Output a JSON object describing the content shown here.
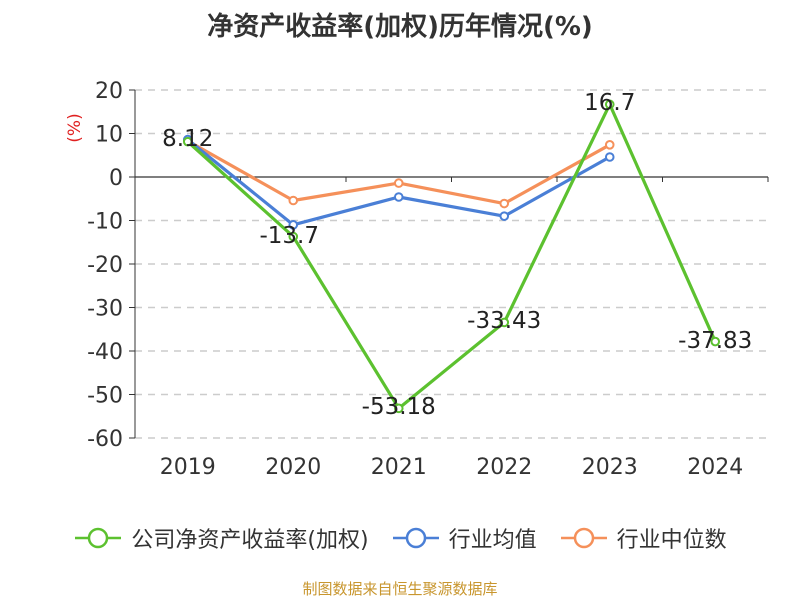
{
  "title": "净资产收益率(加权)历年情况(%)",
  "source": "制图数据来自恒生聚源数据库",
  "chart_data": {
    "type": "line",
    "categories": [
      "2019",
      "2020",
      "2021",
      "2022",
      "2023",
      "2024"
    ],
    "ylabel": "(%)",
    "ylim": [
      -60,
      20
    ],
    "yticks": [
      20,
      10,
      0,
      -10,
      -20,
      -30,
      -40,
      -50,
      -60
    ],
    "grid": true,
    "legend_position": "bottom",
    "series": [
      {
        "name": "公司净资产收益率(加权)",
        "color": "#5cc12f",
        "values": [
          8.12,
          -13.7,
          -53.18,
          -33.43,
          16.7,
          -37.83
        ],
        "data_labels": [
          "8.12",
          "-13.7",
          "-53.18",
          "-33.43",
          "16.7",
          "-37.83"
        ]
      },
      {
        "name": "行业均值",
        "color": "#4a7fd6",
        "values": [
          8.6,
          -11.0,
          -4.6,
          -9.0,
          4.6,
          null
        ]
      },
      {
        "name": "行业中位数",
        "color": "#f5905a",
        "values": [
          8.3,
          -5.4,
          -1.4,
          -6.1,
          7.4,
          null
        ]
      }
    ]
  }
}
